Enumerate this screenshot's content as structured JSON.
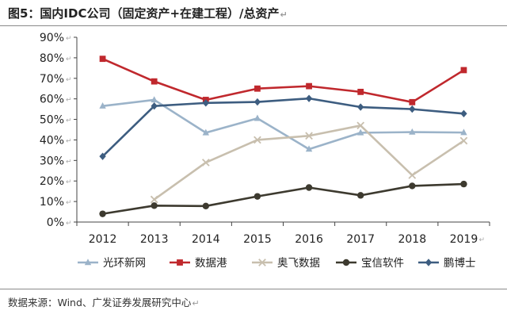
{
  "header": {
    "title": "图5：国内IDC公司（固定资产+在建工程）/总资产"
  },
  "footer": {
    "source": "数据来源：Wind、广发证券发展研究中心"
  },
  "chart_data": {
    "type": "line",
    "title": "图5：国内IDC公司（固定资产+在建工程）/总资产",
    "xlabel": "",
    "ylabel": "",
    "categories": [
      "2012",
      "2013",
      "2014",
      "2015",
      "2016",
      "2017",
      "2018",
      "2019"
    ],
    "ylim": [
      0,
      90
    ],
    "yticks": [
      0,
      10,
      20,
      30,
      40,
      50,
      60,
      70,
      80,
      90
    ],
    "ytick_labels": [
      "0%",
      "10%",
      "20%",
      "30%",
      "40%",
      "50%",
      "60%",
      "70%",
      "80%",
      "90%"
    ],
    "grid": false,
    "legend_position": "bottom",
    "series": [
      {
        "name": "光环新网",
        "color": "#9bb3c9",
        "marker": "triangle",
        "values": [
          56.5,
          59.5,
          43.5,
          50.5,
          35.5,
          43.5,
          43.8,
          43.6
        ]
      },
      {
        "name": "数据港",
        "color": "#c0282d",
        "marker": "square",
        "values": [
          79.5,
          68.5,
          59.5,
          65.0,
          66.2,
          63.4,
          58.4,
          74.0
        ]
      },
      {
        "name": "奥飞数据",
        "color": "#c8bfae",
        "marker": "x",
        "values": [
          null,
          11.0,
          29.0,
          40.0,
          42.0,
          47.0,
          22.8,
          39.6
        ]
      },
      {
        "name": "宝信软件",
        "color": "#3d3a2f",
        "marker": "circle",
        "values": [
          4.0,
          8.0,
          7.8,
          12.5,
          16.8,
          13.0,
          17.6,
          18.5
        ]
      },
      {
        "name": "鹏博士",
        "color": "#3d5d80",
        "marker": "diamond",
        "values": [
          32.0,
          56.5,
          58.0,
          58.5,
          60.2,
          56.0,
          55.0,
          52.8
        ]
      }
    ]
  }
}
